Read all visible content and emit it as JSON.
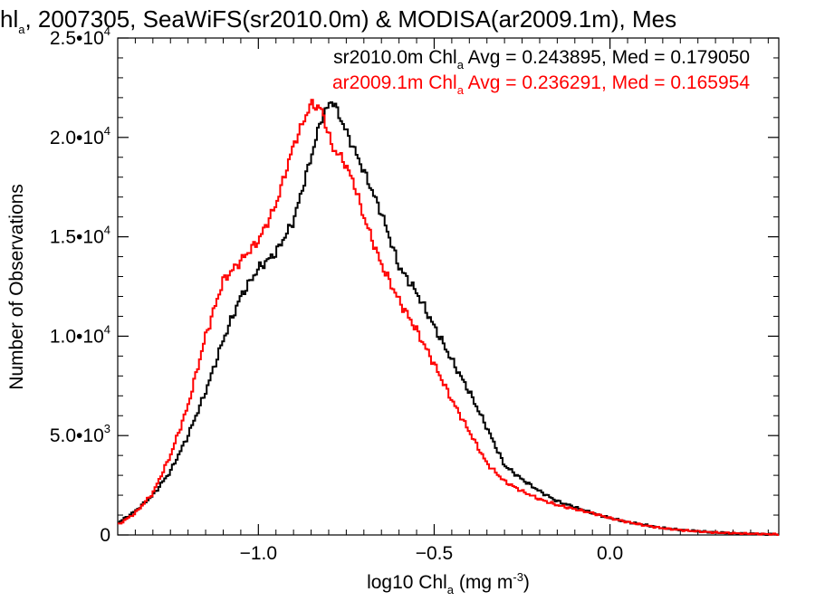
{
  "chart_data": {
    "type": "line",
    "title": {
      "prefix": "hl",
      "sub": "a",
      "rest": ", 2007305, SeaWiFS(sr2010.0m) & MODISA(ar2009.1m), Mes"
    },
    "xlabel": {
      "prefix": "log10 Chl",
      "sub": "a",
      "mid": " (mg m",
      "sup": "-3",
      "suffix": ")"
    },
    "ylabel": "Number of Observations",
    "xlim": [
      -1.4,
      0.48
    ],
    "ylim": [
      0,
      25000
    ],
    "x_ticks": [
      {
        "value": -1.0,
        "label": "−1.0"
      },
      {
        "value": -0.5,
        "label": "−0.5"
      },
      {
        "value": 0.0,
        "label": "0.0"
      }
    ],
    "y_ticks": [
      {
        "value": 0,
        "mant": "0",
        "exp": ""
      },
      {
        "value": 5000,
        "mant": "5.0•10",
        "exp": "3"
      },
      {
        "value": 10000,
        "mant": "1.0•10",
        "exp": "4"
      },
      {
        "value": 15000,
        "mant": "1.5•10",
        "exp": "4"
      },
      {
        "value": 20000,
        "mant": "2.0•10",
        "exp": "4"
      },
      {
        "value": 25000,
        "mant": "2.5•10",
        "exp": "4"
      }
    ],
    "grid": false,
    "legend_position": "top-right",
    "series": [
      {
        "legend_prefix": "sr2010.0m Chl",
        "legend_sub": "a",
        "legend_suffix": " Avg = 0.243895, Med = 0.179050",
        "color": "#000000",
        "x": [
          -1.4,
          -1.35,
          -1.3,
          -1.25,
          -1.2,
          -1.15,
          -1.1,
          -1.05,
          -1.0,
          -0.95,
          -0.9,
          -0.85,
          -0.82,
          -0.79,
          -0.76,
          -0.73,
          -0.7,
          -0.65,
          -0.6,
          -0.55,
          -0.5,
          -0.45,
          -0.4,
          -0.35,
          -0.3,
          -0.25,
          -0.2,
          -0.15,
          -0.1,
          -0.05,
          0.0,
          0.05,
          0.1,
          0.15,
          0.2,
          0.25,
          0.3,
          0.35,
          0.4,
          0.48
        ],
        "y": [
          600,
          1200,
          2000,
          3200,
          5000,
          7200,
          9800,
          12000,
          13400,
          14200,
          15800,
          19000,
          21000,
          21900,
          20700,
          19500,
          18300,
          16200,
          13500,
          12200,
          10500,
          8800,
          7200,
          5400,
          3500,
          2800,
          2200,
          1700,
          1400,
          1100,
          850,
          650,
          500,
          350,
          260,
          190,
          130,
          90,
          60,
          30
        ]
      },
      {
        "legend_prefix": "ar2009.1m Chl",
        "legend_sub": "a",
        "legend_suffix": " Avg = 0.236291, Med = 0.165954",
        "color": "#ff0000",
        "x": [
          -1.4,
          -1.35,
          -1.3,
          -1.25,
          -1.2,
          -1.15,
          -1.1,
          -1.05,
          -1.0,
          -0.95,
          -0.9,
          -0.85,
          -0.82,
          -0.79,
          -0.76,
          -0.73,
          -0.7,
          -0.65,
          -0.6,
          -0.55,
          -0.5,
          -0.45,
          -0.4,
          -0.35,
          -0.3,
          -0.25,
          -0.2,
          -0.15,
          -0.1,
          -0.05,
          0.0,
          0.05,
          0.1,
          0.15,
          0.2,
          0.25,
          0.3,
          0.35,
          0.4,
          0.48
        ],
        "y": [
          500,
          1100,
          2100,
          4000,
          6500,
          10000,
          12800,
          13800,
          14800,
          16600,
          19600,
          21700,
          21400,
          19500,
          18900,
          17800,
          16000,
          13600,
          11800,
          10300,
          8600,
          6800,
          5200,
          3600,
          2700,
          2200,
          1800,
          1500,
          1300,
          1100,
          850,
          650,
          480,
          340,
          250,
          180,
          120,
          90,
          60,
          30
        ]
      }
    ]
  }
}
